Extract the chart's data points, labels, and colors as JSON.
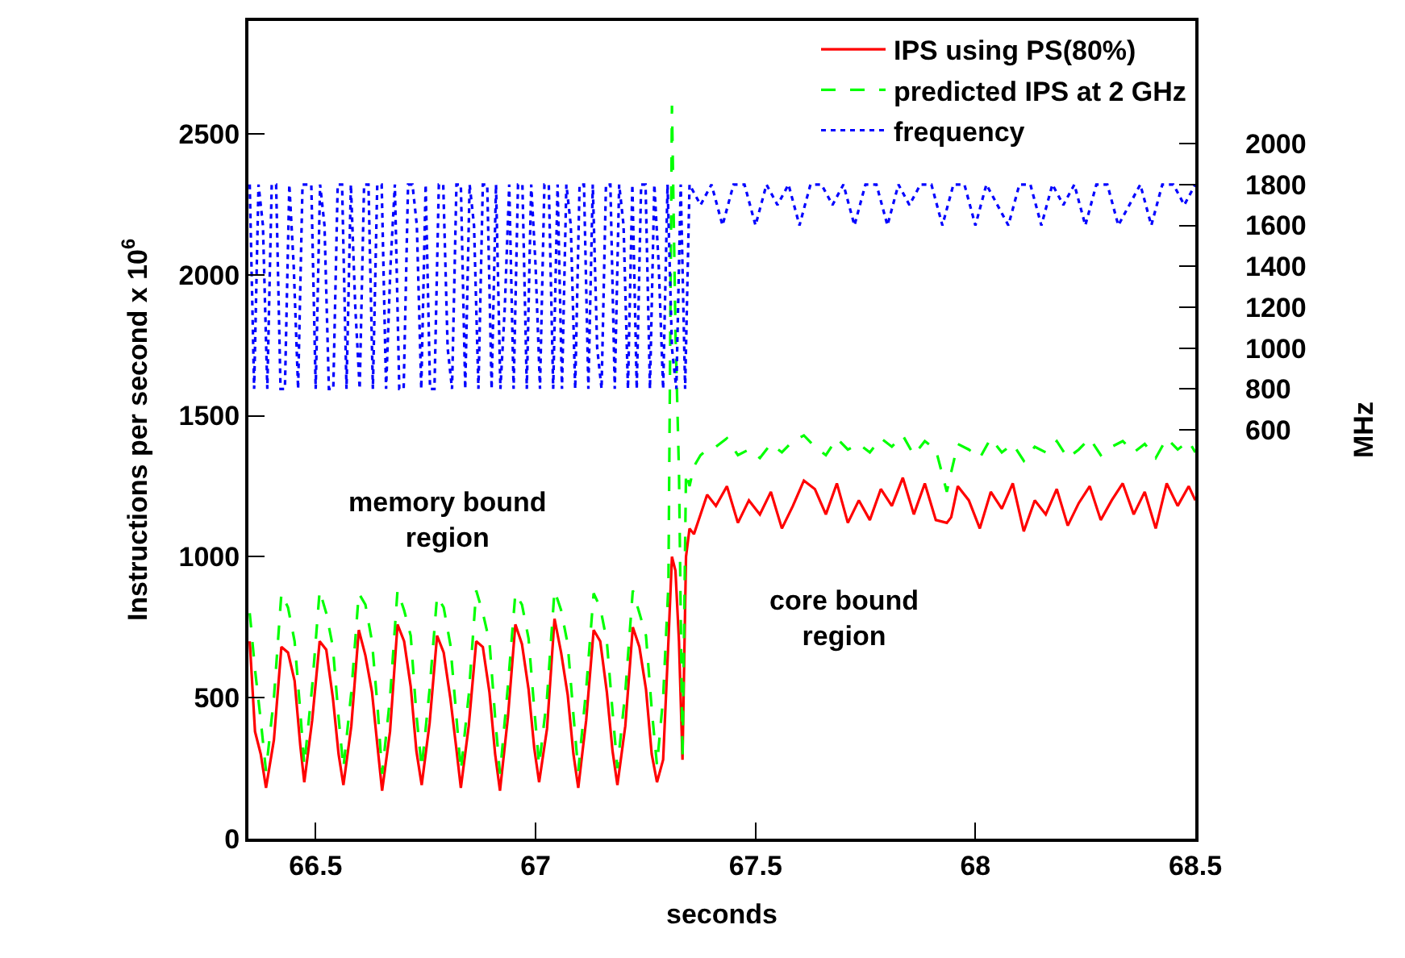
{
  "chart_data": {
    "type": "line",
    "xlabel": "seconds",
    "ylabel": "Instructions per second x 10$^{6}$",
    "y2label": "MHz",
    "xlim": [
      66.347,
      68.5
    ],
    "xticks": [
      66.5,
      67,
      67.5,
      68,
      68.5
    ],
    "ylim": [
      0,
      2900
    ],
    "yticks": [
      0,
      500,
      1000,
      1500,
      2000,
      2500
    ],
    "y2lim": [
      -1400,
      2600
    ],
    "y2ticks": [
      600,
      800,
      1000,
      1200,
      1400,
      1600,
      1800,
      2000
    ],
    "legend": "top right",
    "marker": "none",
    "annotations": [
      "memory bound\nregion",
      "core bound\nregion"
    ],
    "series": [
      {
        "name": "IPS using PS(80%)",
        "color": "#ff0000",
        "line_style": "solid",
        "x": [
          66.35,
          66.362,
          66.375,
          66.387,
          66.405,
          66.422,
          66.437,
          66.452,
          66.465,
          66.474,
          66.492,
          66.509,
          66.524,
          66.539,
          66.552,
          66.563,
          66.581,
          66.598,
          66.613,
          66.628,
          66.641,
          66.651,
          66.669,
          66.686,
          66.701,
          66.716,
          66.729,
          66.741,
          66.759,
          66.776,
          66.791,
          66.806,
          66.819,
          66.83,
          66.848,
          66.865,
          66.88,
          66.895,
          66.908,
          66.919,
          66.937,
          66.954,
          66.969,
          66.984,
          66.997,
          67.008,
          67.026,
          67.043,
          67.058,
          67.073,
          67.086,
          67.097,
          67.115,
          67.132,
          67.147,
          67.162,
          67.175,
          67.186,
          67.204,
          67.221,
          67.236,
          67.251,
          67.264,
          67.276,
          67.29,
          67.302,
          67.31,
          67.318,
          67.326,
          67.334,
          67.342,
          67.35,
          67.36,
          67.375,
          67.39,
          67.41,
          67.435,
          67.46,
          67.485,
          67.51,
          67.535,
          67.56,
          67.585,
          67.61,
          67.635,
          67.66,
          67.685,
          67.71,
          67.735,
          67.76,
          67.785,
          67.81,
          67.835,
          67.86,
          67.885,
          67.91,
          67.935,
          67.945,
          67.96,
          67.985,
          68.01,
          68.035,
          68.06,
          68.085,
          68.11,
          68.135,
          68.16,
          68.185,
          68.21,
          68.235,
          68.26,
          68.285,
          68.31,
          68.335,
          68.36,
          68.385,
          68.41,
          68.435,
          68.46,
          68.485,
          68.5
        ],
        "values": [
          700,
          380,
          300,
          180,
          350,
          680,
          660,
          560,
          330,
          200,
          420,
          700,
          670,
          500,
          300,
          190,
          400,
          740,
          650,
          520,
          320,
          170,
          380,
          760,
          700,
          540,
          310,
          190,
          410,
          720,
          660,
          500,
          330,
          180,
          400,
          700,
          680,
          520,
          300,
          170,
          430,
          760,
          690,
          530,
          320,
          200,
          390,
          780,
          660,
          510,
          300,
          180,
          420,
          740,
          700,
          520,
          310,
          190,
          400,
          750,
          680,
          530,
          300,
          200,
          280,
          700,
          1000,
          950,
          700,
          280,
          1000,
          1100,
          1080,
          1150,
          1220,
          1180,
          1250,
          1120,
          1200,
          1150,
          1230,
          1100,
          1180,
          1270,
          1240,
          1150,
          1260,
          1120,
          1200,
          1130,
          1240,
          1180,
          1280,
          1150,
          1260,
          1130,
          1120,
          1140,
          1250,
          1200,
          1100,
          1230,
          1170,
          1260,
          1090,
          1200,
          1150,
          1240,
          1110,
          1190,
          1250,
          1130,
          1200,
          1260,
          1150,
          1230,
          1100,
          1260,
          1180,
          1250,
          1200
        ]
      },
      {
        "name": "predicted IPS at 2 GHz",
        "color": "#00ff00",
        "line_style": "dashed",
        "x": [
          66.35,
          66.362,
          66.375,
          66.387,
          66.405,
          66.422,
          66.437,
          66.452,
          66.465,
          66.474,
          66.492,
          66.509,
          66.524,
          66.539,
          66.552,
          66.563,
          66.581,
          66.598,
          66.613,
          66.628,
          66.641,
          66.651,
          66.669,
          66.686,
          66.701,
          66.716,
          66.729,
          66.741,
          66.759,
          66.776,
          66.791,
          66.806,
          66.819,
          66.83,
          66.848,
          66.865,
          66.88,
          66.895,
          66.908,
          66.919,
          66.937,
          66.954,
          66.969,
          66.984,
          66.997,
          67.008,
          67.026,
          67.043,
          67.058,
          67.073,
          67.086,
          67.097,
          67.115,
          67.132,
          67.147,
          67.162,
          67.175,
          67.186,
          67.204,
          67.221,
          67.236,
          67.251,
          67.264,
          67.276,
          67.29,
          67.302,
          67.31,
          67.318,
          67.326,
          67.334,
          67.342,
          67.35,
          67.36,
          67.375,
          67.39,
          67.41,
          67.435,
          67.46,
          67.485,
          67.51,
          67.535,
          67.56,
          67.585,
          67.61,
          67.635,
          67.66,
          67.685,
          67.71,
          67.735,
          67.76,
          67.785,
          67.81,
          67.835,
          67.86,
          67.885,
          67.91,
          67.935,
          67.945,
          67.96,
          67.985,
          68.01,
          68.035,
          68.06,
          68.085,
          68.11,
          68.135,
          68.16,
          68.185,
          68.21,
          68.235,
          68.26,
          68.285,
          68.31,
          68.335,
          68.36,
          68.385,
          68.41,
          68.435,
          68.46,
          68.485,
          68.5
        ],
        "values": [
          800,
          600,
          420,
          240,
          500,
          870,
          820,
          700,
          450,
          260,
          540,
          880,
          800,
          680,
          430,
          250,
          520,
          870,
          830,
          700,
          460,
          230,
          500,
          880,
          810,
          720,
          440,
          250,
          530,
          860,
          820,
          690,
          450,
          240,
          510,
          880,
          800,
          700,
          430,
          230,
          540,
          870,
          830,
          710,
          460,
          260,
          500,
          880,
          810,
          690,
          440,
          240,
          530,
          870,
          820,
          700,
          450,
          250,
          520,
          880,
          800,
          720,
          460,
          260,
          500,
          900,
          2600,
          1800,
          1300,
          280,
          1300,
          1250,
          1320,
          1360,
          1380,
          1390,
          1420,
          1360,
          1380,
          1350,
          1400,
          1370,
          1410,
          1430,
          1390,
          1360,
          1420,
          1380,
          1400,
          1370,
          1420,
          1390,
          1430,
          1360,
          1410,
          1380,
          1230,
          1300,
          1400,
          1380,
          1350,
          1420,
          1370,
          1400,
          1340,
          1390,
          1370,
          1410,
          1350,
          1380,
          1420,
          1360,
          1390,
          1410,
          1370,
          1400,
          1350,
          1420,
          1380,
          1410,
          1370
        ]
      },
      {
        "name": "frequency",
        "color": "#0000ff",
        "line_style": "dotted",
        "axis": "y2",
        "x": [
          66.35,
          66.36,
          66.37,
          66.38,
          66.39,
          66.4,
          66.41,
          66.42,
          66.43,
          66.44,
          66.45,
          66.46,
          66.47,
          66.48,
          66.49,
          66.5,
          66.51,
          66.52,
          66.53,
          66.54,
          66.55,
          66.56,
          66.57,
          66.58,
          66.59,
          66.6,
          66.61,
          66.62,
          66.63,
          66.64,
          66.65,
          66.66,
          66.67,
          66.68,
          66.69,
          66.7,
          66.71,
          66.72,
          66.73,
          66.74,
          66.75,
          66.76,
          66.77,
          66.78,
          66.79,
          66.8,
          66.81,
          66.82,
          66.83,
          66.84,
          66.85,
          66.86,
          66.87,
          66.88,
          66.89,
          66.9,
          66.91,
          66.92,
          66.93,
          66.94,
          66.95,
          66.96,
          66.97,
          66.98,
          66.99,
          67.0,
          67.01,
          67.02,
          67.03,
          67.04,
          67.05,
          67.06,
          67.07,
          67.08,
          67.09,
          67.1,
          67.11,
          67.12,
          67.13,
          67.14,
          67.15,
          67.16,
          67.17,
          67.18,
          67.19,
          67.2,
          67.21,
          67.22,
          67.23,
          67.24,
          67.25,
          67.26,
          67.27,
          67.28,
          67.29,
          67.3,
          67.31,
          67.32,
          67.33,
          67.34,
          67.35,
          67.375,
          67.4,
          67.425,
          67.45,
          67.475,
          67.5,
          67.525,
          67.55,
          67.575,
          67.6,
          67.625,
          67.65,
          67.675,
          67.7,
          67.725,
          67.75,
          67.775,
          67.8,
          67.825,
          67.85,
          67.875,
          67.9,
          67.925,
          67.95,
          67.975,
          68.0,
          68.025,
          68.05,
          68.075,
          68.1,
          68.125,
          68.15,
          68.175,
          68.2,
          68.225,
          68.25,
          68.275,
          68.3,
          68.325,
          68.35,
          68.375,
          68.4,
          68.425,
          68.45,
          68.475,
          68.5
        ],
        "values": [
          1800,
          800,
          1800,
          1600,
          800,
          1800,
          1800,
          800,
          800,
          1800,
          1400,
          800,
          1800,
          1800,
          1800,
          800,
          1800,
          1600,
          800,
          800,
          1800,
          1800,
          800,
          1800,
          1200,
          800,
          1800,
          1800,
          800,
          1800,
          1800,
          800,
          1400,
          1800,
          800,
          800,
          1800,
          1800,
          1600,
          800,
          1800,
          800,
          800,
          1800,
          1800,
          1000,
          800,
          1800,
          1800,
          800,
          1800,
          1600,
          800,
          1800,
          1800,
          800,
          1800,
          800,
          1200,
          1800,
          800,
          1800,
          1800,
          800,
          1800,
          1400,
          800,
          1800,
          1800,
          800,
          1800,
          800,
          1800,
          1600,
          800,
          1800,
          1800,
          800,
          1800,
          1000,
          800,
          1800,
          1800,
          800,
          1800,
          1600,
          800,
          1800,
          800,
          1800,
          1800,
          800,
          1800,
          1400,
          800,
          1800,
          1000,
          800,
          1800,
          800,
          1800,
          1700,
          1800,
          1600,
          1800,
          1800,
          1600,
          1800,
          1700,
          1800,
          1600,
          1800,
          1800,
          1700,
          1800,
          1600,
          1800,
          1800,
          1600,
          1800,
          1700,
          1800,
          1800,
          1600,
          1800,
          1800,
          1600,
          1800,
          1700,
          1600,
          1800,
          1800,
          1600,
          1800,
          1700,
          1800,
          1600,
          1800,
          1800,
          1600,
          1700,
          1800,
          1600,
          1800,
          1800,
          1700,
          1800
        ]
      }
    ]
  }
}
